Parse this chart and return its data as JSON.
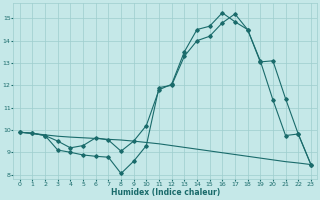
{
  "xlabel": "Humidex (Indice chaleur)",
  "background_color": "#c5e8e8",
  "line_color": "#1a6b6b",
  "grid_color": "#9ecece",
  "xlim": [
    -0.5,
    23.5
  ],
  "ylim": [
    7.8,
    15.7
  ],
  "yticks": [
    8,
    9,
    10,
    11,
    12,
    13,
    14,
    15
  ],
  "xticks": [
    0,
    1,
    2,
    3,
    4,
    5,
    6,
    7,
    8,
    9,
    10,
    11,
    12,
    13,
    14,
    15,
    16,
    17,
    18,
    19,
    20,
    21,
    22,
    23
  ],
  "line1_y": [
    9.9,
    9.85,
    9.78,
    9.72,
    9.68,
    9.65,
    9.62,
    9.58,
    9.55,
    9.5,
    9.44,
    9.38,
    9.3,
    9.22,
    9.14,
    9.06,
    8.98,
    8.9,
    8.82,
    8.74,
    8.66,
    8.58,
    8.52,
    8.45
  ],
  "line2_x": [
    0,
    1,
    2,
    3,
    4,
    5,
    6,
    7,
    8,
    9,
    10,
    11,
    12,
    13,
    14,
    15,
    16,
    17,
    18,
    19,
    20,
    21,
    22,
    23
  ],
  "line2_y": [
    9.9,
    9.85,
    9.75,
    9.1,
    9.0,
    8.88,
    8.82,
    8.78,
    8.05,
    8.6,
    9.3,
    11.9,
    12.0,
    13.3,
    14.0,
    14.2,
    14.8,
    15.2,
    14.5,
    13.1,
    11.35,
    9.75,
    9.82,
    8.45
  ],
  "line3_x": [
    0,
    1,
    2,
    3,
    4,
    5,
    6,
    7,
    8,
    9,
    10,
    11,
    12,
    13,
    14,
    15,
    16,
    17,
    18,
    19,
    20,
    21,
    22,
    23
  ],
  "line3_y": [
    9.9,
    9.85,
    9.75,
    9.5,
    9.2,
    9.3,
    9.65,
    9.55,
    9.05,
    9.5,
    10.2,
    11.8,
    12.05,
    13.5,
    14.5,
    14.65,
    15.25,
    14.85,
    14.5,
    13.05,
    13.1,
    11.4,
    9.82,
    8.45
  ]
}
